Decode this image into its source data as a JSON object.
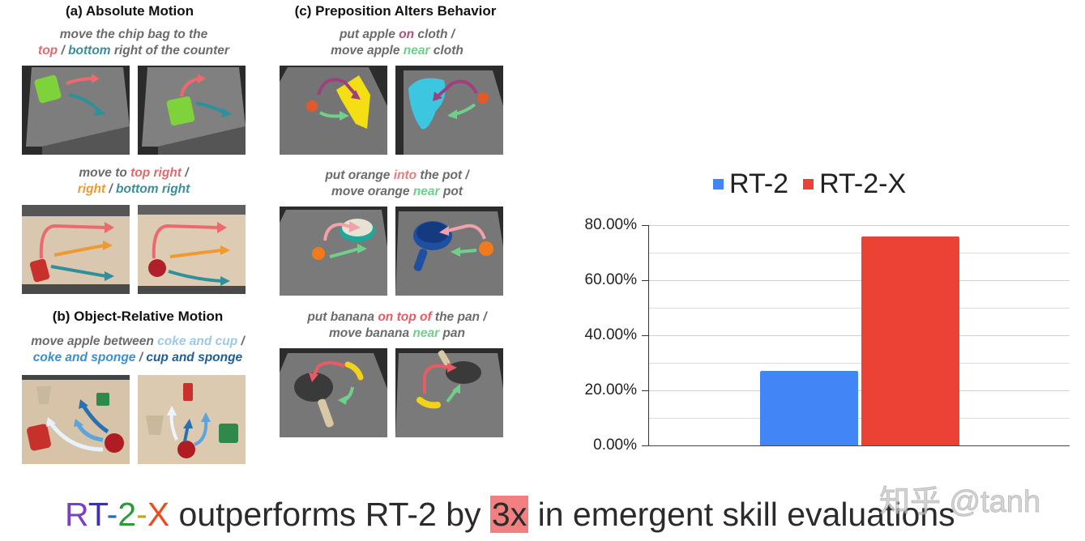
{
  "panels": {
    "a": {
      "title": "(a) Absolute Motion",
      "examples": [
        {
          "caption_lines": [
            [
              {
                "t": "move the chip bag to the",
                "c": "#6b6b6b"
              }
            ],
            [
              {
                "t": "top",
                "c": "#e06a6e"
              },
              {
                "t": " / ",
                "c": "#6b6b6b"
              },
              {
                "t": "bottom",
                "c": "#3a8e96"
              },
              {
                "t": " right of the counter",
                "c": "#6b6b6b"
              }
            ]
          ]
        },
        {
          "caption_lines": [
            [
              {
                "t": "move to ",
                "c": "#6b6b6b"
              },
              {
                "t": "top right",
                "c": "#e06a6e"
              },
              {
                "t": " /",
                "c": "#6b6b6b"
              }
            ],
            [
              {
                "t": "right",
                "c": "#ee9a30"
              },
              {
                "t": " / ",
                "c": "#6b6b6b"
              },
              {
                "t": "bottom right",
                "c": "#3a8e96"
              }
            ]
          ]
        }
      ]
    },
    "b": {
      "title": "(b) Object-Relative Motion",
      "examples": [
        {
          "caption_lines": [
            [
              {
                "t": "move apple between ",
                "c": "#6b6b6b"
              },
              {
                "t": "coke and cup",
                "c": "#9cc9e6"
              },
              {
                "t": " /",
                "c": "#6b6b6b"
              }
            ],
            [
              {
                "t": "coke and sponge",
                "c": "#3a8fcf"
              },
              {
                "t": " / ",
                "c": "#6b6b6b"
              },
              {
                "t": "cup and sponge",
                "c": "#1f5f96"
              }
            ]
          ]
        }
      ]
    },
    "c": {
      "title": "(c) Preposition Alters Behavior",
      "examples": [
        {
          "caption_lines": [
            [
              {
                "t": "put apple ",
                "c": "#6b6b6b"
              },
              {
                "t": "on",
                "c": "#b0507e"
              },
              {
                "t": " cloth /",
                "c": "#6b6b6b"
              }
            ],
            [
              {
                "t": "move apple ",
                "c": "#6b6b6b"
              },
              {
                "t": "near",
                "c": "#6fd08a"
              },
              {
                "t": " cloth",
                "c": "#6b6b6b"
              }
            ]
          ]
        },
        {
          "caption_lines": [
            [
              {
                "t": "put orange ",
                "c": "#6b6b6b"
              },
              {
                "t": "into",
                "c": "#ee7b7b"
              },
              {
                "t": " the pot /",
                "c": "#6b6b6b"
              }
            ],
            [
              {
                "t": "move orange ",
                "c": "#6b6b6b"
              },
              {
                "t": "near",
                "c": "#6fd08a"
              },
              {
                "t": " pot",
                "c": "#6b6b6b"
              }
            ]
          ]
        },
        {
          "caption_lines": [
            [
              {
                "t": "put banana ",
                "c": "#6b6b6b"
              },
              {
                "t": "on top of",
                "c": "#e85a64"
              },
              {
                "t": " the pan /",
                "c": "#6b6b6b"
              }
            ],
            [
              {
                "t": "move banana ",
                "c": "#6b6b6b"
              },
              {
                "t": "near",
                "c": "#6fd08a"
              },
              {
                "t": " pan",
                "c": "#6b6b6b"
              }
            ]
          ]
        }
      ]
    }
  },
  "chart": {
    "legend": [
      {
        "label": "RT-2",
        "color": "#4285f4"
      },
      {
        "label": "RT-2-X",
        "color": "#ea4335"
      }
    ],
    "yticks": [
      "80.00%",
      "60.00%",
      "40.00%",
      "20.00%",
      "0.00%"
    ]
  },
  "chart_data": {
    "type": "bar",
    "title": "",
    "categories": [
      ""
    ],
    "series": [
      {
        "name": "RT-2",
        "color": "#4285f4",
        "values": [
          27
        ]
      },
      {
        "name": "RT-2-X",
        "color": "#ea4335",
        "values": [
          76
        ]
      }
    ],
    "xlabel": "",
    "ylabel": "",
    "ylim": [
      0,
      80
    ],
    "y_tick_labels": [
      "0.00%",
      "20.00%",
      "40.00%",
      "60.00%",
      "80.00%"
    ],
    "minor_gridlines_every": 10,
    "grid": true,
    "legend_position": "top",
    "annotation": "RT-2-X outperforms RT-2 by 3x in emergent skill evaluations"
  },
  "headline": {
    "rainbow": [
      {
        "t": "R",
        "c": "#7b3fc0"
      },
      {
        "t": "T",
        "c": "#3a2fb8"
      },
      {
        "t": "-",
        "c": "#2a66c8"
      },
      {
        "t": "2",
        "c": "#2a9a3a"
      },
      {
        "t": "-",
        "c": "#c8a020"
      },
      {
        "t": "X",
        "c": "#ee4a1e"
      }
    ],
    "pre": " outperforms RT-2 by ",
    "highlight": "3x",
    "post": " in emergent skill evaluations"
  },
  "watermark": "知乎 @tanh"
}
